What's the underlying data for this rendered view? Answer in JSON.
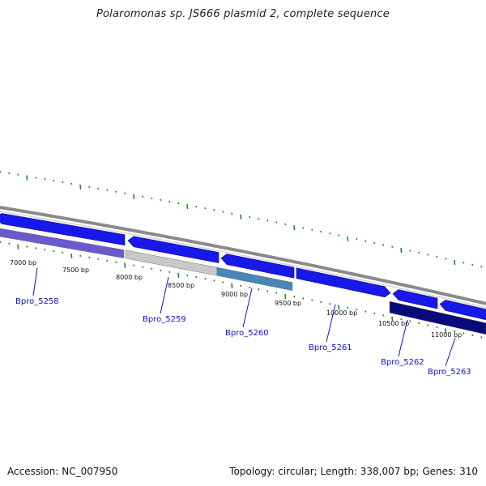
{
  "title": "Polaromonas sp. JS666 plasmid 2, complete sequence",
  "footer": {
    "accession": "Accession: NC_007950",
    "summary": "Topology: circular; Length: 338,007 bp; Genes: 310"
  },
  "colors": {
    "backbone": "#8a8a8a",
    "tick": "#1f8a1f",
    "label_link": "#1010cc",
    "gene_forward": "#1818e8",
    "gene_reverse_dark": "#0a0a7a",
    "gene_purple": "#6a5acd",
    "gene_grey": "#c8c8c8",
    "gene_steel": "#4a86b8"
  },
  "bp_labels": [
    {
      "label": "7000 bp"
    },
    {
      "label": "7500 bp"
    },
    {
      "label": "8000 bp"
    },
    {
      "label": "8500 bp"
    },
    {
      "label": "9000 bp"
    },
    {
      "label": "9500 bp"
    },
    {
      "label": "10000 bp"
    },
    {
      "label": "10500 bp"
    },
    {
      "label": "11000 bp"
    }
  ],
  "genes": [
    {
      "name": "Bpro_5258",
      "track": "outer",
      "strand": "-",
      "color": "gene_forward"
    },
    {
      "name": "Bpro_5258",
      "track": "inner",
      "strand": "-",
      "color": "gene_purple"
    },
    {
      "name": "Bpro_5259",
      "track": "outer",
      "strand": "-",
      "color": "gene_forward"
    },
    {
      "name": "Bpro_5259",
      "track": "inner",
      "strand": "-",
      "color": "gene_grey"
    },
    {
      "name": "Bpro_5260",
      "track": "outer",
      "strand": "-",
      "color": "gene_forward"
    },
    {
      "name": "Bpro_5260",
      "track": "inner",
      "strand": "-",
      "color": "gene_steel"
    },
    {
      "name": "Bpro_5261",
      "track": "outer",
      "strand": "+",
      "color": "gene_forward"
    },
    {
      "name": "Bpro_5262",
      "track": "outer",
      "strand": "-",
      "color": "gene_forward"
    },
    {
      "name": "Bpro_5262",
      "track": "inner",
      "strand": "-",
      "color": "gene_reverse_dark"
    },
    {
      "name": "Bpro_5263",
      "track": "outer",
      "strand": "-",
      "color": "gene_forward"
    }
  ],
  "gene_labels": [
    {
      "label": "Bpro_5258"
    },
    {
      "label": "Bpro_5259"
    },
    {
      "label": "Bpro_5260"
    },
    {
      "label": "Bpro_5261"
    },
    {
      "label": "Bpro_5262"
    },
    {
      "label": "Bpro_5263"
    }
  ]
}
